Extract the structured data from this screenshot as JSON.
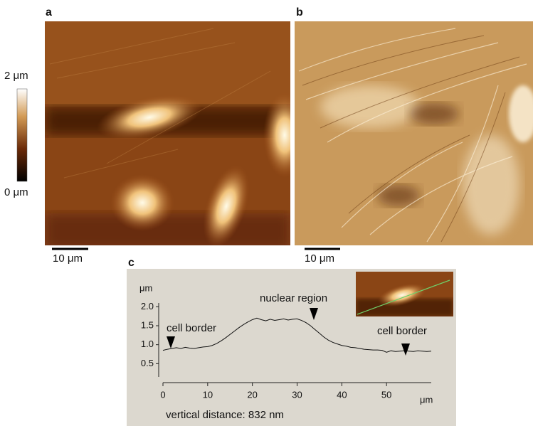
{
  "figure": {
    "panel_labels": [
      "a",
      "b",
      "c"
    ],
    "colorbar_max": "2 μm",
    "colorbar_min": "0 μm",
    "scale_bar_a": "10 μm",
    "scale_bar_b": "10 μm"
  },
  "chart_data": {
    "type": "line",
    "y_unit": "μm",
    "x_unit": "μm",
    "x": [
      0,
      1,
      2,
      3,
      4,
      5,
      6,
      7,
      8,
      9,
      10,
      11,
      12,
      13,
      14,
      15,
      16,
      17,
      18,
      19,
      20,
      21,
      22,
      23,
      24,
      25,
      26,
      27,
      28,
      29,
      30,
      31,
      32,
      33,
      34,
      35,
      36,
      37,
      38,
      39,
      40,
      41,
      42,
      43,
      44,
      45,
      46,
      47,
      48,
      49,
      50,
      51,
      52,
      53,
      54,
      55,
      56,
      57,
      58,
      59,
      60
    ],
    "values": [
      0.85,
      0.88,
      0.9,
      0.92,
      0.9,
      0.93,
      0.91,
      0.9,
      0.92,
      0.94,
      0.95,
      0.98,
      1.03,
      1.1,
      1.18,
      1.27,
      1.36,
      1.45,
      1.53,
      1.6,
      1.66,
      1.7,
      1.66,
      1.63,
      1.67,
      1.64,
      1.66,
      1.68,
      1.65,
      1.67,
      1.68,
      1.64,
      1.58,
      1.5,
      1.4,
      1.3,
      1.2,
      1.12,
      1.06,
      1.02,
      0.98,
      0.96,
      0.93,
      0.92,
      0.9,
      0.88,
      0.87,
      0.86,
      0.86,
      0.85,
      0.8,
      0.84,
      0.82,
      0.83,
      0.84,
      0.83,
      0.82,
      0.84,
      0.83,
      0.82,
      0.83
    ],
    "color": "#111111",
    "xlim": [
      0,
      60
    ],
    "ylim": [
      0,
      2.1
    ],
    "xticks": [
      0,
      10,
      20,
      30,
      40,
      50
    ],
    "yticks": [
      0.5,
      {
        "value": 1,
        "label": "1.0"
      },
      1.5,
      {
        "value": 2,
        "label": "2.0"
      }
    ],
    "annotations": [
      "cell border",
      "nuclear region",
      "cell border"
    ],
    "footnote": "vertical distance: 832 nm"
  }
}
